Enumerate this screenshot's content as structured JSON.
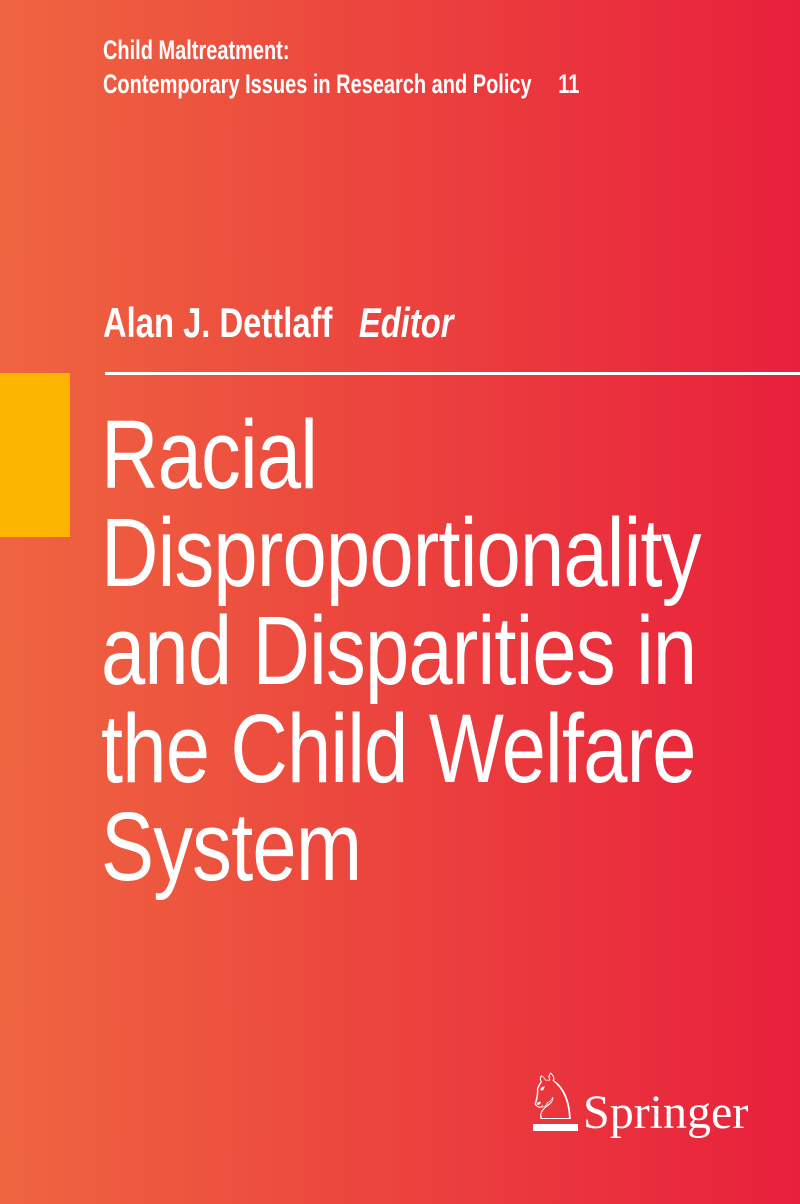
{
  "series": {
    "line1": "Child Maltreatment:",
    "line2": "Contemporary Issues in Research and Policy",
    "volume": "11"
  },
  "editor": {
    "name": "Alan J. Dettlaff",
    "role": "Editor"
  },
  "title": {
    "lines": [
      "Racial",
      "Disproportionality",
      "and Disparities in",
      "the Child Welfare",
      "System"
    ]
  },
  "publisher": {
    "name": "Springer",
    "knight_icon": "♘"
  },
  "colors": {
    "gradient_left": "#EF6540",
    "gradient_right": "#E8203C",
    "accent_yellow": "#FBB400",
    "text": "#FFFFFF"
  }
}
